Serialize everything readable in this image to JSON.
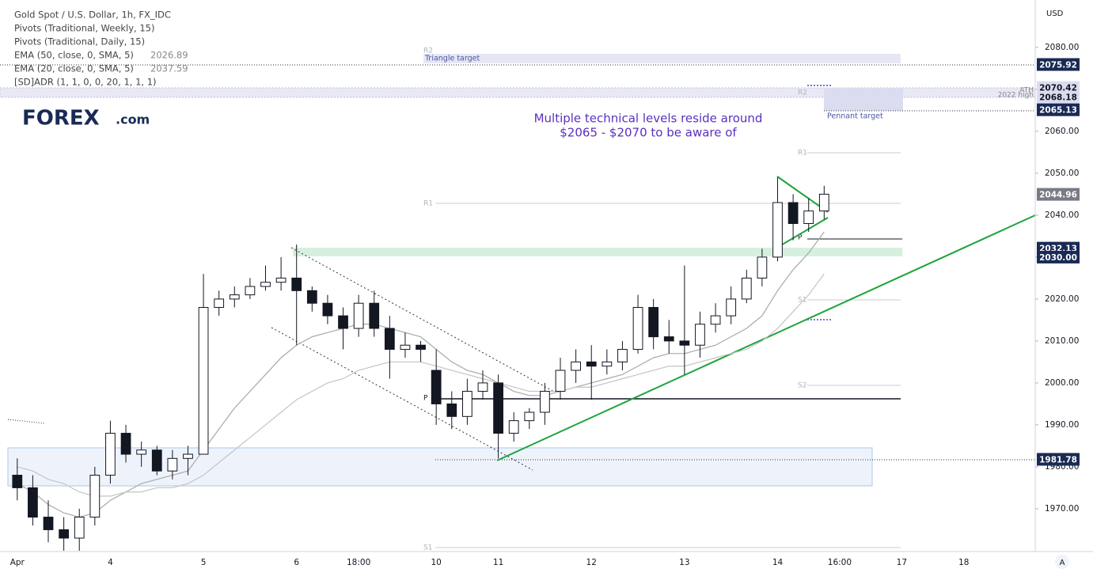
{
  "chart_data": {
    "type": "candlestick",
    "legend_lines": [
      "Gold Spot / U.S. Dollar, 1h, FX_IDC",
      "Pivots (Traditional, Weekly, 15)",
      "Pivots (Traditional, Daily, 15)",
      "[SD]ADR (1, 1, 0, 0, 20, 1, 1, 1)"
    ],
    "indicators": [
      {
        "name": "EMA (50, close, 0, SMA, 5)",
        "value": 2026.89
      },
      {
        "name": "EMA (20, close, 0, SMA, 5)",
        "value": 2037.59
      }
    ],
    "logo": "FOREX",
    "logo_suffix": ".com",
    "axis_unit": "USD",
    "annotations": {
      "note": [
        "Multiple technical levels reside around",
        "$2065 - $2070 to be aware of"
      ],
      "triangle_target": "Triangle target",
      "pennant_target": "Pennant target",
      "high_2022": "2022 high",
      "ath": "ATH",
      "pivots": [
        "R2",
        "R1",
        "P",
        "S1",
        "R2",
        "R1",
        "P",
        "S1",
        "S2"
      ]
    },
    "scale_button": "A",
    "categories": [
      "Apr",
      null,
      null,
      null,
      null,
      null,
      "4",
      null,
      null,
      null,
      null,
      null,
      "5",
      null,
      null,
      null,
      null,
      null,
      "6",
      null,
      null,
      null,
      "18:00",
      null,
      null,
      null,
      null,
      "10",
      null,
      null,
      null,
      "11",
      null,
      null,
      null,
      null,
      null,
      "12",
      null,
      null,
      null,
      null,
      null,
      "13",
      null,
      null,
      null,
      null,
      null,
      "14",
      null,
      null,
      null,
      "16:00",
      null,
      null,
      null,
      "17",
      null,
      null,
      null,
      "18",
      null,
      null,
      null,
      null
    ],
    "open": [
      1978,
      1975,
      1968,
      1965,
      1963,
      1968,
      1978,
      1988,
      1983,
      1984,
      1979,
      1982,
      1983,
      2018,
      2020,
      2021,
      2023,
      2024,
      2025,
      2022,
      2019,
      2016,
      2013,
      2019,
      2013,
      2008,
      2009,
      2003,
      1995,
      1992,
      1998,
      2000,
      1988,
      1991,
      1993,
      1998,
      2003,
      2005,
      2004,
      2005,
      2008,
      2018,
      2011,
      2010,
      2009,
      2014,
      2016,
      2020,
      2025,
      2030,
      2043,
      2038,
      2041,
      null,
      null,
      null,
      null,
      null,
      null,
      null,
      null,
      null,
      null,
      null,
      null,
      null
    ],
    "high": [
      1982,
      1978,
      1972,
      1968,
      1970,
      1980,
      1991,
      1990,
      1986,
      1985,
      1984,
      1985,
      2026,
      2022,
      2023,
      2025,
      2028,
      2030,
      2033,
      2023,
      2021,
      2018,
      2021,
      2022,
      2016,
      2012,
      2010,
      2008,
      1998,
      2001,
      2003,
      2002,
      1993,
      1994,
      2000,
      2006,
      2008,
      2009,
      2008,
      2010,
      2021,
      2020,
      2015,
      2028,
      2017,
      2019,
      2023,
      2027,
      2032,
      2049,
      2045,
      2044,
      2047,
      null,
      null,
      null,
      null,
      null,
      null,
      null,
      null,
      null,
      null,
      null,
      null,
      null
    ],
    "low": [
      1972,
      1966,
      1962,
      1960,
      1960,
      1966,
      1976,
      1981,
      1980,
      1978,
      1977,
      1978,
      1983,
      2016,
      2018,
      2020,
      2022,
      2022,
      2009,
      2017,
      2014,
      2008,
      2011,
      2011,
      2001,
      2006,
      2005,
      1990,
      1989,
      1990,
      1996,
      1982,
      1986,
      1989,
      1990,
      1996,
      2000,
      1996,
      2002,
      2003,
      2007,
      2008,
      2007,
      2002,
      2006,
      2012,
      2014,
      2019,
      2023,
      2029,
      2034,
      2036,
      2039,
      null,
      null,
      null,
      null,
      null,
      null,
      null,
      null,
      null,
      null,
      null,
      null,
      null
    ],
    "close": [
      1975,
      1968,
      1965,
      1963,
      1968,
      1978,
      1988,
      1983,
      1984,
      1979,
      1982,
      1983,
      2018,
      2020,
      2021,
      2023,
      2024,
      2025,
      2022,
      2019,
      2016,
      2013,
      2019,
      2013,
      2008,
      2009,
      2008,
      1995,
      1992,
      1998,
      2000,
      1988,
      1991,
      1993,
      1998,
      2003,
      2005,
      2004,
      2005,
      2008,
      2018,
      2011,
      2010,
      2009,
      2014,
      2016,
      2020,
      2025,
      2030,
      2043,
      2038,
      2041,
      2045,
      null,
      null,
      null,
      null,
      null,
      null,
      null,
      null,
      null,
      null,
      null,
      null,
      null
    ],
    "ema_lines": [
      {
        "color": "#a8a8a8",
        "values": [
          1976,
          1974,
          1971,
          1969,
          1968,
          1969,
          1972,
          1974,
          1976,
          1977,
          1978,
          1979,
          1984,
          1989,
          1994,
          1998,
          2002,
          2006,
          2009,
          2011,
          2012,
          2013,
          2014,
          2014,
          2013,
          2012,
          2011,
          2008,
          2005,
          2003,
          2002,
          2000,
          1998,
          1997,
          1997,
          1998,
          1999,
          2000,
          2001,
          2002,
          2004,
          2006,
          2007,
          2007,
          2008,
          2009,
          2011,
          2013,
          2016,
          2022,
          2027,
          2031,
          2036,
          null,
          null,
          null,
          null,
          null,
          null,
          null,
          null,
          null,
          null,
          null,
          null,
          null
        ]
      },
      {
        "color": "#c4c4c4",
        "values": [
          1980,
          1979,
          1977,
          1976,
          1974,
          1973,
          1973,
          1974,
          1974,
          1975,
          1975,
          1976,
          1978,
          1981,
          1984,
          1987,
          1990,
          1993,
          1996,
          1998,
          2000,
          2001,
          2003,
          2004,
          2005,
          2005,
          2005,
          2004,
          2003,
          2002,
          2001,
          2000,
          1999,
          1998,
          1998,
          1998,
          1999,
          1999,
          2000,
          2001,
          2002,
          2003,
          2004,
          2004,
          2005,
          2006,
          2007,
          2008,
          2010,
          2013,
          2017,
          2021,
          2026,
          null,
          null,
          null,
          null,
          null,
          null,
          null,
          null,
          null,
          null,
          null,
          null,
          null
        ]
      }
    ],
    "colors": {
      "up": "#ffffff",
      "down": "#131722",
      "outline": "#131722"
    },
    "ylim": [
      1959.8,
      2091.3
    ],
    "yticks": [
      {
        "value": 1970,
        "label": "1970.00"
      },
      {
        "value": 1980,
        "label": "1980.00"
      },
      {
        "value": 1990,
        "label": "1990.00"
      },
      {
        "value": 2000,
        "label": "2000.00"
      },
      {
        "value": 2010,
        "label": "2010.00"
      },
      {
        "value": 2020,
        "label": "2020.00"
      },
      {
        "value": 2030,
        "label": "2030.00"
      },
      {
        "value": 2040,
        "label": "2040.00"
      },
      {
        "value": 2050,
        "label": "2050.00"
      },
      {
        "value": 2060,
        "label": "2060.00"
      },
      {
        "value": 2070,
        "label": "2070.00"
      },
      {
        "value": 2080,
        "label": "2080.00"
      }
    ],
    "grid": false,
    "price_labels": [
      {
        "value": 2075.92,
        "color": "#1a2a55",
        "text_color": "#ffffff"
      },
      {
        "value": 2070.42,
        "color": "#dcdcf0",
        "text_color": "#131722"
      },
      {
        "value": 2068.18,
        "color": "#dcdcf0",
        "text_color": "#131722"
      },
      {
        "value": 2065.13,
        "color": "#1a2a55",
        "text_color": "#ffffff"
      },
      {
        "value": 2044.96,
        "color": "#787b86",
        "text_color": "#ffffff"
      },
      {
        "value": 2032.13,
        "color": "#1a2a55",
        "text_color": "#ffffff"
      },
      {
        "value": 2030,
        "label": "2030.00",
        "color": "#1a2a55",
        "text_color": "#ffffff"
      },
      {
        "value": 1981.78,
        "color": "#1a2a55",
        "text_color": "#ffffff"
      }
    ]
  }
}
